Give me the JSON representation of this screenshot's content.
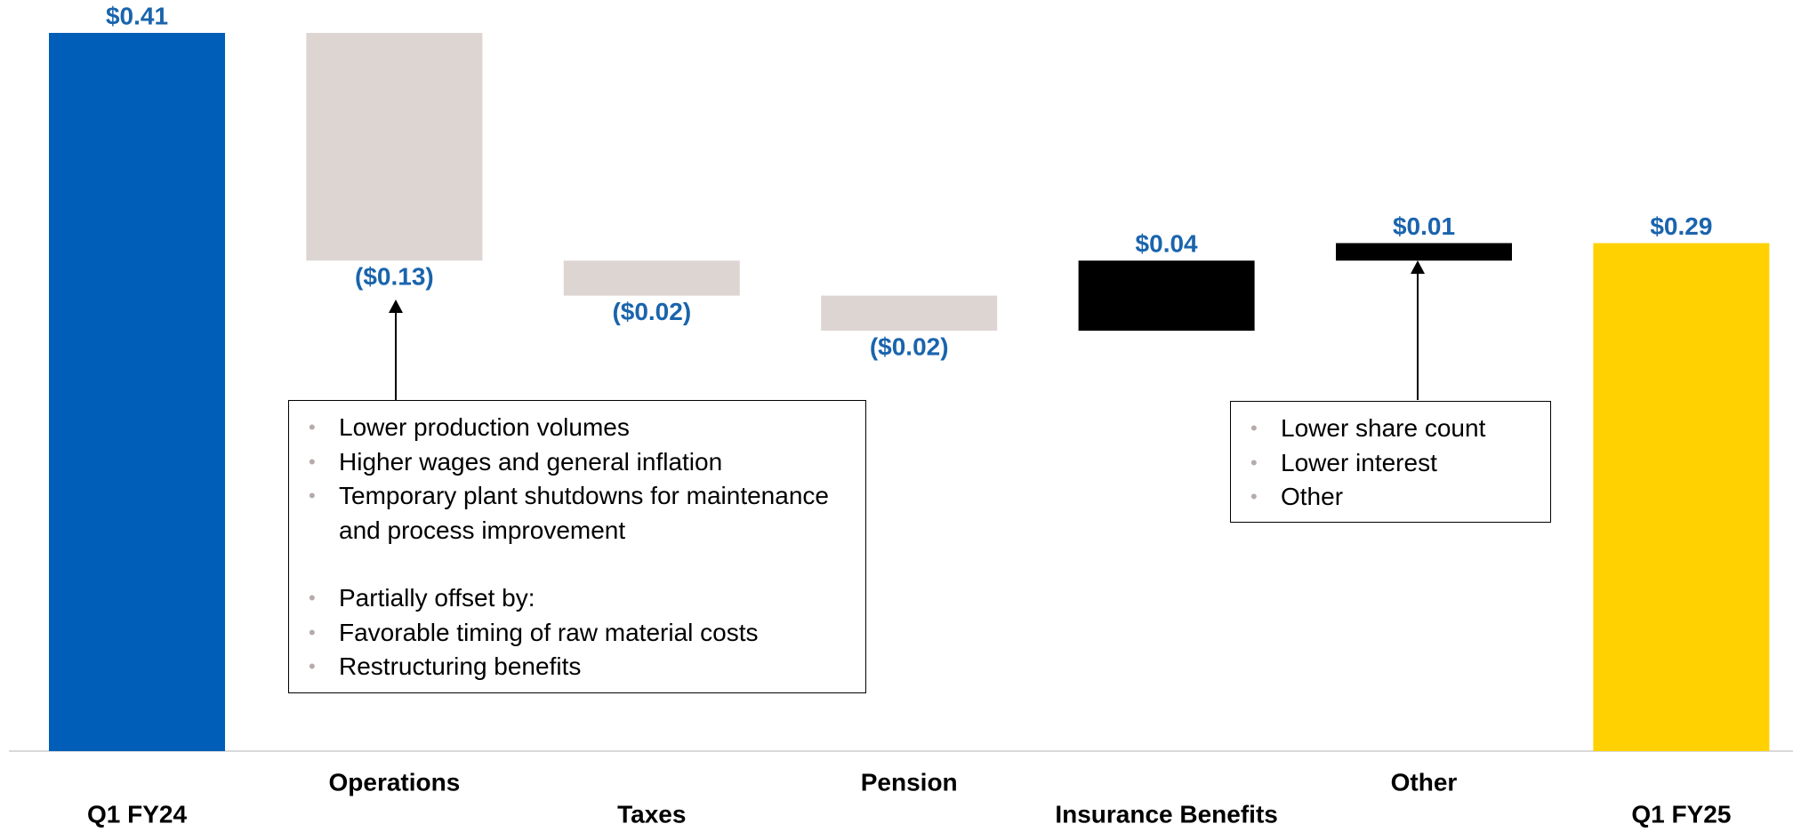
{
  "chart_data": {
    "type": "waterfall",
    "categories": [
      "Q1 FY24",
      "Operations",
      "Taxes",
      "Pension",
      "Insurance Benefits",
      "Other",
      "Q1 FY25"
    ],
    "values": [
      0.41,
      -0.13,
      -0.02,
      -0.02,
      0.04,
      0.01,
      0.29
    ],
    "value_labels": [
      "$0.41",
      "($0.13)",
      "($0.02)",
      "($0.02)",
      "$0.04",
      "$0.01",
      "$0.29"
    ],
    "colors": [
      "#005eb8",
      "#ddd5d2",
      "#ddd5d2",
      "#ddd5d2",
      "#000000",
      "#000000",
      "#ffd100"
    ],
    "annotations": [
      {
        "groups": [
          [
            "Lower production volumes",
            "Higher wages and general inflation",
            "Temporary plant shutdowns for maintenance and process improvement"
          ],
          [
            "Partially offset by:",
            "Favorable timing of raw material costs",
            "Restructuring benefits"
          ]
        ]
      },
      {
        "groups": [
          [
            "Lower share count",
            "Lower interest",
            "Other"
          ]
        ]
      }
    ]
  }
}
